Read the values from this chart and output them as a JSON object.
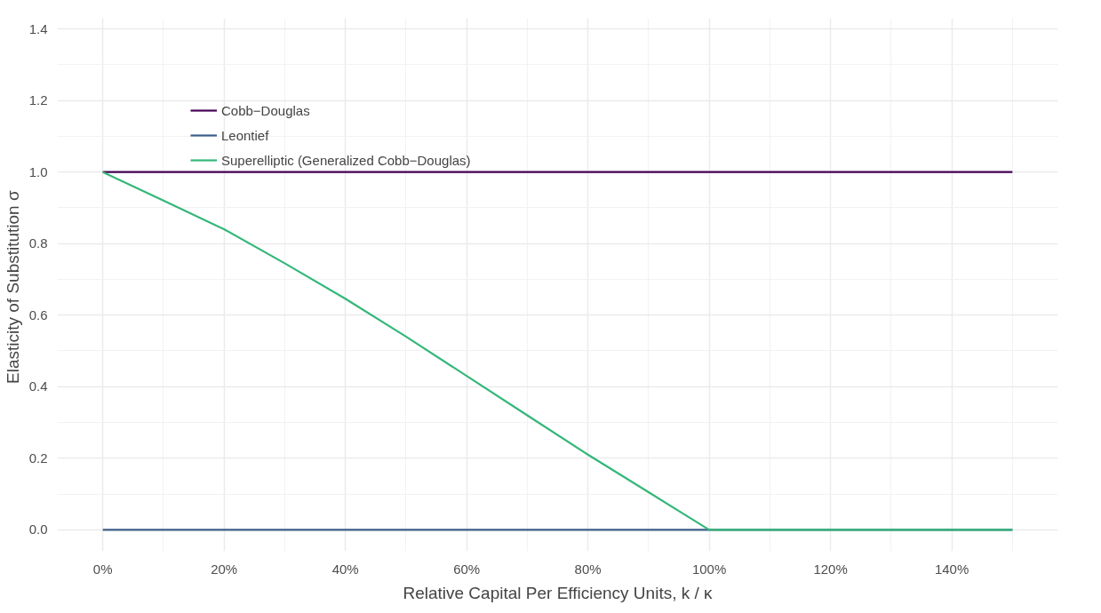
{
  "chart_data": {
    "type": "line",
    "xlabel": "Relative Capital Per Efficiency Units, k / κ",
    "ylabel": "Elasticity of Substitution  σ",
    "series": [
      {
        "name": "Cobb−Douglas",
        "color": "#440154",
        "x": [
          0,
          150
        ],
        "values": [
          1,
          1
        ]
      },
      {
        "name": "Leontief",
        "color": "#3b5f8a",
        "x": [
          0,
          150
        ],
        "values": [
          0,
          0
        ]
      },
      {
        "name": "Superelliptic (Generalized Cobb−Douglas)",
        "color": "#35b779",
        "x": [
          0,
          10,
          20,
          30,
          40,
          50,
          60,
          70,
          80,
          90,
          100,
          150
        ],
        "values": [
          1.0,
          0.92,
          0.84,
          0.745,
          0.646,
          0.54,
          0.43,
          0.32,
          0.21,
          0.105,
          0,
          0
        ]
      }
    ],
    "xlim": [
      -7.5,
      157.5
    ],
    "xticks": [
      {
        "value": 0,
        "label": "0%"
      },
      {
        "value": 20,
        "label": "20%"
      },
      {
        "value": 40,
        "label": "40%"
      },
      {
        "value": 60,
        "label": "60%"
      },
      {
        "value": 80,
        "label": "80%"
      },
      {
        "value": 100,
        "label": "100%"
      },
      {
        "value": 120,
        "label": "120%"
      },
      {
        "value": 140,
        "label": "140%"
      }
    ],
    "ylim": [
      -0.06,
      1.43
    ],
    "yticks": [
      {
        "value": 0,
        "label": "0.0"
      },
      {
        "value": 0.2,
        "label": "0.2"
      },
      {
        "value": 0.4,
        "label": "0.4"
      },
      {
        "value": 0.6,
        "label": "0.6"
      },
      {
        "value": 0.8,
        "label": "0.8"
      },
      {
        "value": 1.0,
        "label": "1.0"
      },
      {
        "value": 1.2,
        "label": "1.2"
      },
      {
        "value": 1.4,
        "label": "1.4"
      }
    ],
    "grid": true,
    "legend": "top left",
    "marker": "none",
    "line_style": "solid"
  }
}
